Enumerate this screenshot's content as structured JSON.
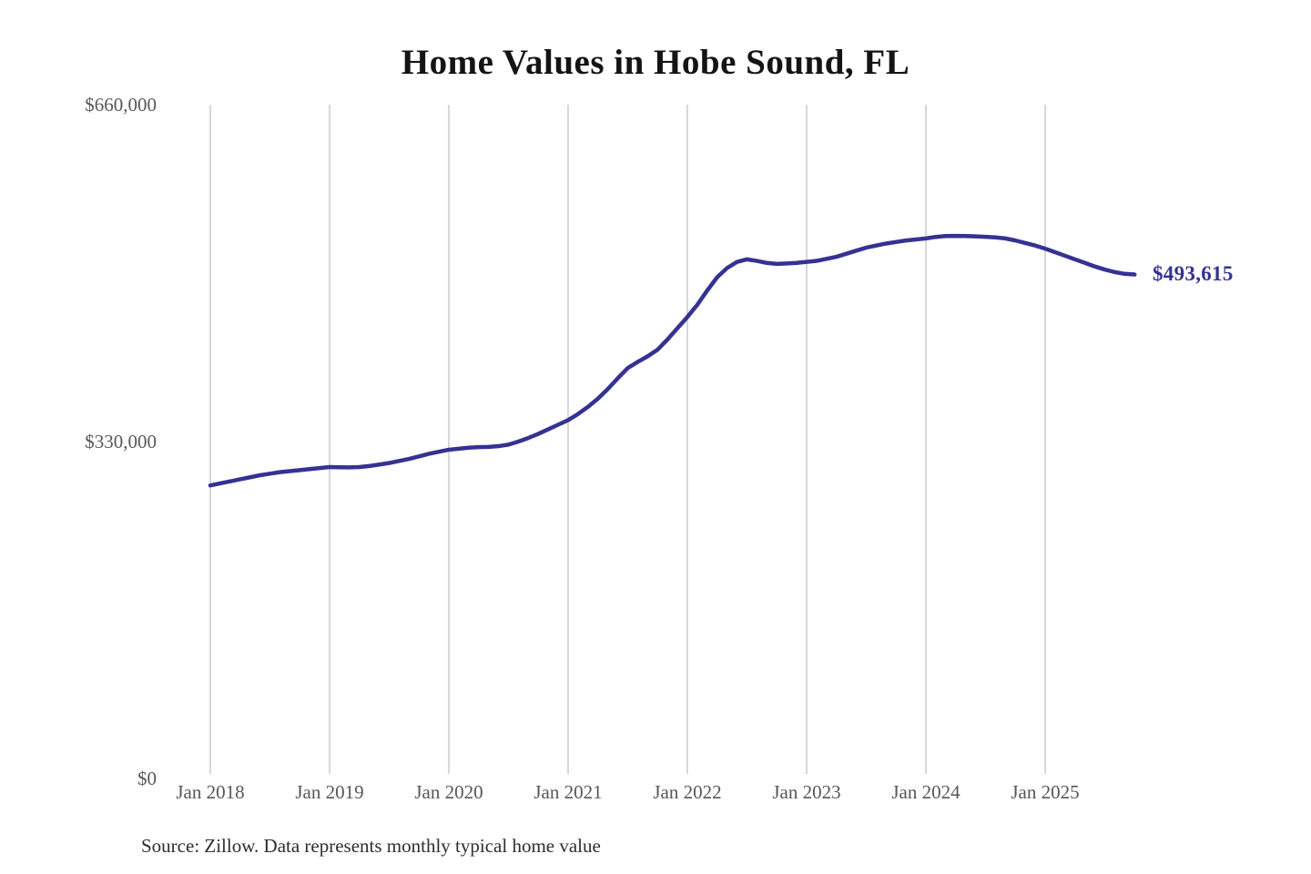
{
  "chart": {
    "title": "Home Values in Hobe Sound, FL",
    "end_label": "$493,615",
    "source": "Source: Zillow. Data represents monthly typical home value",
    "colors": {
      "line": "#353293",
      "grid": "#cccccc",
      "axis_text": "#56575a",
      "title_text": "#141414",
      "source_text": "#2e2e2e"
    }
  },
  "chart_data": {
    "type": "line",
    "title": "Home Values in Hobe Sound, FL",
    "xlabel": "",
    "ylabel": "",
    "ylim": [
      0,
      660000
    ],
    "grid": "vertical-only",
    "legend": "none",
    "x_start": "Jan 2018",
    "x_interval": "monthly",
    "x_tick_labels": [
      "Jan 2018",
      "Jan 2019",
      "Jan 2020",
      "Jan 2021",
      "Jan 2022",
      "Jan 2023",
      "Jan 2024",
      "Jan 2025"
    ],
    "y_ticks": [
      {
        "label": "$0",
        "value": 0
      },
      {
        "label": "$330,000",
        "value": 330000
      },
      {
        "label": "$660,000",
        "value": 660000
      }
    ],
    "final_value": 493615,
    "final_value_label": "$493,615",
    "series": [
      {
        "name": "Monthly typical home value",
        "values": [
          287000,
          289000,
          291000,
          293000,
          295000,
          297000,
          298500,
          300000,
          301000,
          302000,
          303000,
          304000,
          305000,
          304800,
          304700,
          305000,
          306000,
          307500,
          309000,
          311000,
          313000,
          315500,
          318000,
          320000,
          322000,
          323000,
          324000,
          324500,
          324800,
          325500,
          327000,
          330000,
          333500,
          337500,
          342000,
          346500,
          351000,
          357000,
          364000,
          372000,
          381500,
          392000,
          402000,
          408000,
          413500,
          420000,
          430000,
          441000,
          452000,
          464000,
          478000,
          491000,
          500000,
          506000,
          508500,
          507000,
          505000,
          504000,
          504500,
          505000,
          506000,
          507000,
          509000,
          511000,
          514000,
          517000,
          520000,
          522000,
          524000,
          525500,
          527000,
          528000,
          529000,
          530500,
          531300,
          531500,
          531400,
          531000,
          530600,
          530000,
          529000,
          527000,
          524500,
          522000,
          519000,
          515500,
          512000,
          508500,
          505000,
          501500,
          498500,
          496000,
          494300,
          493615
        ]
      }
    ]
  }
}
